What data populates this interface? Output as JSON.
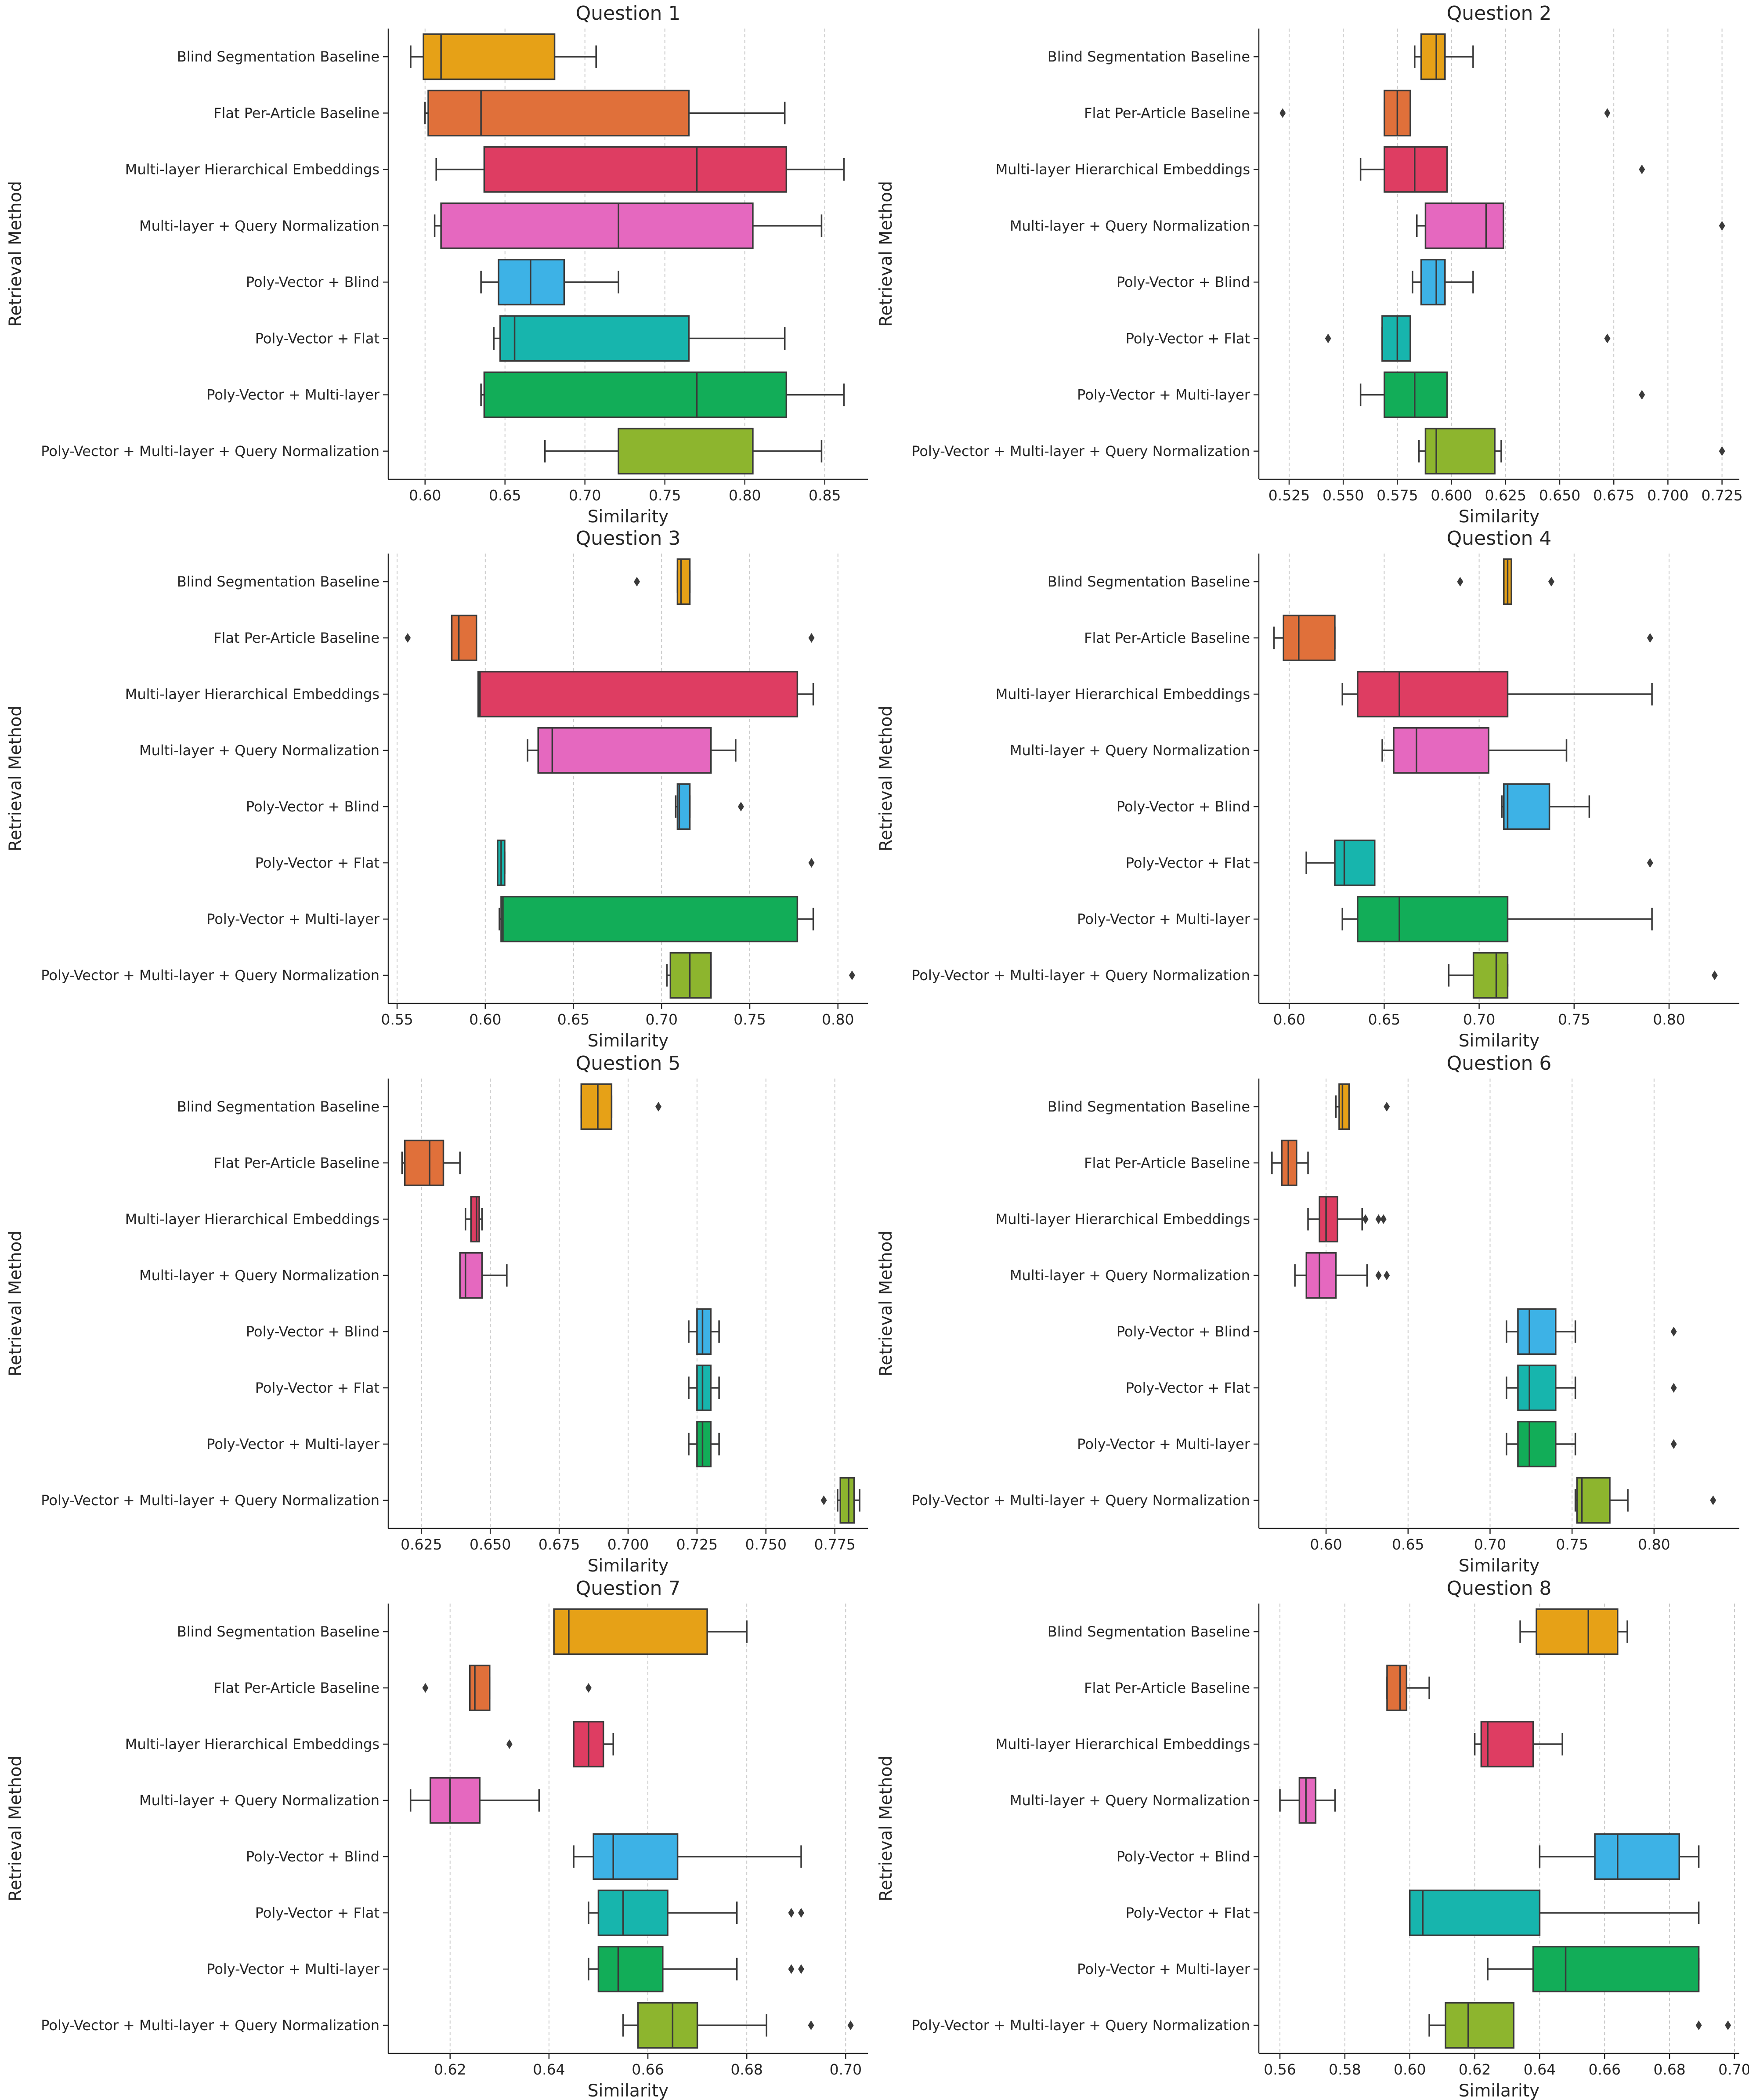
{
  "methods": [
    "Blind Segmentation Baseline",
    "Flat Per-Article Baseline",
    "Multi-layer Hierarchical Embeddings",
    "Multi-layer + Query Normalization",
    "Poly-Vector + Blind",
    "Poly-Vector + Flat",
    "Poly-Vector + Multi-layer",
    "Poly-Vector + Multi-layer + Query Normalization"
  ],
  "colors": [
    "#E6A117",
    "#E0703A",
    "#DE3D62",
    "#E568BF",
    "#3DB2E6",
    "#17B5AD",
    "#12AD58",
    "#8DB52E"
  ],
  "chart_data": [
    {
      "type": "box",
      "title": "Question 1",
      "xlabel": "Similarity",
      "ylabel": "Retrieval Method",
      "xlim": [
        0.577,
        0.877
      ],
      "xticks": [
        0.6,
        0.65,
        0.7,
        0.75,
        0.8,
        0.85
      ],
      "tick_labels": [
        "0.60",
        "0.65",
        "0.70",
        "0.75",
        "0.80",
        "0.85"
      ],
      "grid": "vertical",
      "boxes": [
        {
          "whislo": 0.591,
          "q1": 0.599,
          "med": 0.61,
          "q3": 0.681,
          "whishi": 0.707,
          "fliers": []
        },
        {
          "whislo": 0.6,
          "q1": 0.602,
          "med": 0.635,
          "q3": 0.765,
          "whishi": 0.825,
          "fliers": []
        },
        {
          "whislo": 0.607,
          "q1": 0.637,
          "med": 0.77,
          "q3": 0.826,
          "whishi": 0.862,
          "fliers": []
        },
        {
          "whislo": 0.606,
          "q1": 0.61,
          "med": 0.721,
          "q3": 0.805,
          "whishi": 0.848,
          "fliers": []
        },
        {
          "whislo": 0.635,
          "q1": 0.646,
          "med": 0.666,
          "q3": 0.687,
          "whishi": 0.721,
          "fliers": []
        },
        {
          "whislo": 0.643,
          "q1": 0.647,
          "med": 0.656,
          "q3": 0.765,
          "whishi": 0.825,
          "fliers": []
        },
        {
          "whislo": 0.635,
          "q1": 0.637,
          "med": 0.77,
          "q3": 0.826,
          "whishi": 0.862,
          "fliers": []
        },
        {
          "whislo": 0.675,
          "q1": 0.721,
          "med": 0.721,
          "q3": 0.805,
          "whishi": 0.848,
          "fliers": []
        }
      ]
    },
    {
      "type": "box",
      "title": "Question 2",
      "xlabel": "Similarity",
      "ylabel": "Retrieval Method",
      "xlim": [
        0.511,
        0.733
      ],
      "xticks": [
        0.525,
        0.55,
        0.575,
        0.6,
        0.625,
        0.65,
        0.675,
        0.7,
        0.725
      ],
      "tick_labels": [
        "0.525",
        "0.550",
        "0.575",
        "0.600",
        "0.625",
        "0.650",
        "0.675",
        "0.700",
        "0.725"
      ],
      "grid": "vertical",
      "boxes": [
        {
          "whislo": 0.583,
          "q1": 0.586,
          "med": 0.593,
          "q3": 0.597,
          "whishi": 0.61,
          "fliers": []
        },
        {
          "whislo": 0.569,
          "q1": 0.569,
          "med": 0.575,
          "q3": 0.581,
          "whishi": 0.581,
          "fliers": [
            0.522,
            0.672
          ]
        },
        {
          "whislo": 0.558,
          "q1": 0.569,
          "med": 0.583,
          "q3": 0.598,
          "whishi": 0.598,
          "fliers": [
            0.688
          ]
        },
        {
          "whislo": 0.584,
          "q1": 0.588,
          "med": 0.616,
          "q3": 0.624,
          "whishi": 0.624,
          "fliers": [
            0.725
          ]
        },
        {
          "whislo": 0.582,
          "q1": 0.586,
          "med": 0.593,
          "q3": 0.597,
          "whishi": 0.61,
          "fliers": []
        },
        {
          "whislo": 0.568,
          "q1": 0.568,
          "med": 0.575,
          "q3": 0.581,
          "whishi": 0.581,
          "fliers": [
            0.543,
            0.672
          ]
        },
        {
          "whislo": 0.558,
          "q1": 0.569,
          "med": 0.583,
          "q3": 0.598,
          "whishi": 0.598,
          "fliers": [
            0.688
          ]
        },
        {
          "whislo": 0.585,
          "q1": 0.588,
          "med": 0.593,
          "q3": 0.62,
          "whishi": 0.623,
          "fliers": [
            0.725
          ]
        }
      ]
    },
    {
      "type": "box",
      "title": "Question 3",
      "xlabel": "Similarity",
      "ylabel": "Retrieval Method",
      "xlim": [
        0.545,
        0.817
      ],
      "xticks": [
        0.55,
        0.6,
        0.65,
        0.7,
        0.75,
        0.8
      ],
      "tick_labels": [
        "0.55",
        "0.60",
        "0.65",
        "0.70",
        "0.75",
        "0.80"
      ],
      "grid": "vertical",
      "boxes": [
        {
          "whislo": 0.709,
          "q1": 0.709,
          "med": 0.711,
          "q3": 0.716,
          "whishi": 0.716,
          "fliers": [
            0.686
          ]
        },
        {
          "whislo": 0.581,
          "q1": 0.581,
          "med": 0.585,
          "q3": 0.595,
          "whishi": 0.595,
          "fliers": [
            0.556,
            0.785
          ]
        },
        {
          "whislo": 0.596,
          "q1": 0.596,
          "med": 0.597,
          "q3": 0.777,
          "whishi": 0.786,
          "fliers": []
        },
        {
          "whislo": 0.624,
          "q1": 0.63,
          "med": 0.638,
          "q3": 0.728,
          "whishi": 0.742,
          "fliers": []
        },
        {
          "whislo": 0.708,
          "q1": 0.709,
          "med": 0.71,
          "q3": 0.716,
          "whishi": 0.716,
          "fliers": [
            0.745
          ]
        },
        {
          "whislo": 0.607,
          "q1": 0.607,
          "med": 0.609,
          "q3": 0.611,
          "whishi": 0.611,
          "fliers": [
            0.785
          ]
        },
        {
          "whislo": 0.608,
          "q1": 0.609,
          "med": 0.61,
          "q3": 0.777,
          "whishi": 0.786,
          "fliers": []
        },
        {
          "whislo": 0.703,
          "q1": 0.705,
          "med": 0.716,
          "q3": 0.728,
          "whishi": 0.728,
          "fliers": [
            0.808
          ]
        }
      ]
    },
    {
      "type": "box",
      "title": "Question 4",
      "xlabel": "Similarity",
      "ylabel": "Retrieval Method",
      "xlim": [
        0.584,
        0.837
      ],
      "xticks": [
        0.6,
        0.65,
        0.7,
        0.75,
        0.8
      ],
      "tick_labels": [
        "0.60",
        "0.65",
        "0.70",
        "0.75",
        "0.80"
      ],
      "grid": "vertical",
      "boxes": [
        {
          "whislo": 0.713,
          "q1": 0.713,
          "med": 0.715,
          "q3": 0.717,
          "whishi": 0.717,
          "fliers": [
            0.69,
            0.738
          ]
        },
        {
          "whislo": 0.592,
          "q1": 0.597,
          "med": 0.605,
          "q3": 0.624,
          "whishi": 0.624,
          "fliers": [
            0.79
          ]
        },
        {
          "whislo": 0.628,
          "q1": 0.636,
          "med": 0.658,
          "q3": 0.715,
          "whishi": 0.791,
          "fliers": []
        },
        {
          "whislo": 0.649,
          "q1": 0.655,
          "med": 0.667,
          "q3": 0.705,
          "whishi": 0.746,
          "fliers": []
        },
        {
          "whislo": 0.712,
          "q1": 0.713,
          "med": 0.715,
          "q3": 0.737,
          "whishi": 0.758,
          "fliers": []
        },
        {
          "whislo": 0.609,
          "q1": 0.624,
          "med": 0.629,
          "q3": 0.645,
          "whishi": 0.645,
          "fliers": [
            0.79
          ]
        },
        {
          "whislo": 0.628,
          "q1": 0.636,
          "med": 0.658,
          "q3": 0.715,
          "whishi": 0.791,
          "fliers": []
        },
        {
          "whislo": 0.684,
          "q1": 0.697,
          "med": 0.709,
          "q3": 0.715,
          "whishi": 0.715,
          "fliers": [
            0.824
          ]
        }
      ]
    },
    {
      "type": "box",
      "title": "Question 5",
      "xlabel": "Similarity",
      "ylabel": "Retrieval Method",
      "xlim": [
        0.613,
        0.787
      ],
      "xticks": [
        0.625,
        0.65,
        0.675,
        0.7,
        0.725,
        0.75,
        0.775
      ],
      "tick_labels": [
        "0.625",
        "0.650",
        "0.675",
        "0.700",
        "0.725",
        "0.750",
        "0.775"
      ],
      "grid": "vertical",
      "boxes": [
        {
          "whislo": 0.683,
          "q1": 0.683,
          "med": 0.689,
          "q3": 0.694,
          "whishi": 0.694,
          "fliers": [
            0.711
          ]
        },
        {
          "whislo": 0.618,
          "q1": 0.619,
          "med": 0.628,
          "q3": 0.633,
          "whishi": 0.639,
          "fliers": []
        },
        {
          "whislo": 0.641,
          "q1": 0.643,
          "med": 0.645,
          "q3": 0.646,
          "whishi": 0.647,
          "fliers": []
        },
        {
          "whislo": 0.639,
          "q1": 0.639,
          "med": 0.641,
          "q3": 0.647,
          "whishi": 0.656,
          "fliers": []
        },
        {
          "whislo": 0.722,
          "q1": 0.725,
          "med": 0.727,
          "q3": 0.73,
          "whishi": 0.733,
          "fliers": []
        },
        {
          "whislo": 0.722,
          "q1": 0.725,
          "med": 0.727,
          "q3": 0.73,
          "whishi": 0.733,
          "fliers": []
        },
        {
          "whislo": 0.722,
          "q1": 0.725,
          "med": 0.727,
          "q3": 0.73,
          "whishi": 0.733,
          "fliers": []
        },
        {
          "whislo": 0.776,
          "q1": 0.777,
          "med": 0.78,
          "q3": 0.782,
          "whishi": 0.784,
          "fliers": [
            0.771
          ]
        }
      ]
    },
    {
      "type": "box",
      "title": "Question 6",
      "xlabel": "Similarity",
      "ylabel": "Retrieval Method",
      "xlim": [
        0.559,
        0.852
      ],
      "xticks": [
        0.6,
        0.65,
        0.7,
        0.75,
        0.8
      ],
      "tick_labels": [
        "0.60",
        "0.65",
        "0.70",
        "0.75",
        "0.80"
      ],
      "grid": "vertical",
      "boxes": [
        {
          "whislo": 0.606,
          "q1": 0.608,
          "med": 0.61,
          "q3": 0.614,
          "whishi": 0.614,
          "fliers": [
            0.637
          ]
        },
        {
          "whislo": 0.567,
          "q1": 0.573,
          "med": 0.577,
          "q3": 0.582,
          "whishi": 0.589,
          "fliers": []
        },
        {
          "whislo": 0.589,
          "q1": 0.596,
          "med": 0.6,
          "q3": 0.607,
          "whishi": 0.622,
          "fliers": [
            0.624,
            0.632,
            0.635
          ]
        },
        {
          "whislo": 0.581,
          "q1": 0.588,
          "med": 0.596,
          "q3": 0.606,
          "whishi": 0.625,
          "fliers": [
            0.632,
            0.637
          ]
        },
        {
          "whislo": 0.71,
          "q1": 0.717,
          "med": 0.724,
          "q3": 0.74,
          "whishi": 0.752,
          "fliers": [
            0.812
          ]
        },
        {
          "whislo": 0.71,
          "q1": 0.717,
          "med": 0.724,
          "q3": 0.74,
          "whishi": 0.752,
          "fliers": [
            0.812
          ]
        },
        {
          "whislo": 0.71,
          "q1": 0.717,
          "med": 0.724,
          "q3": 0.74,
          "whishi": 0.752,
          "fliers": [
            0.812
          ]
        },
        {
          "whislo": 0.752,
          "q1": 0.753,
          "med": 0.756,
          "q3": 0.773,
          "whishi": 0.784,
          "fliers": [
            0.836
          ]
        }
      ]
    },
    {
      "type": "box",
      "title": "Question 7",
      "xlabel": "Similarity",
      "ylabel": "Retrieval Method",
      "xlim": [
        0.6075,
        0.7045
      ],
      "xticks": [
        0.62,
        0.64,
        0.66,
        0.68,
        0.7
      ],
      "tick_labels": [
        "0.62",
        "0.64",
        "0.66",
        "0.68",
        "0.70"
      ],
      "grid": "vertical",
      "boxes": [
        {
          "whislo": 0.641,
          "q1": 0.641,
          "med": 0.644,
          "q3": 0.672,
          "whishi": 0.68,
          "fliers": []
        },
        {
          "whislo": 0.624,
          "q1": 0.624,
          "med": 0.625,
          "q3": 0.628,
          "whishi": 0.628,
          "fliers": [
            0.615,
            0.648
          ]
        },
        {
          "whislo": 0.645,
          "q1": 0.645,
          "med": 0.648,
          "q3": 0.651,
          "whishi": 0.653,
          "fliers": [
            0.632
          ]
        },
        {
          "whislo": 0.612,
          "q1": 0.616,
          "med": 0.62,
          "q3": 0.626,
          "whishi": 0.638,
          "fliers": []
        },
        {
          "whislo": 0.645,
          "q1": 0.649,
          "med": 0.653,
          "q3": 0.666,
          "whishi": 0.691,
          "fliers": []
        },
        {
          "whislo": 0.648,
          "q1": 0.65,
          "med": 0.655,
          "q3": 0.664,
          "whishi": 0.678,
          "fliers": [
            0.689,
            0.691
          ]
        },
        {
          "whislo": 0.648,
          "q1": 0.65,
          "med": 0.654,
          "q3": 0.663,
          "whishi": 0.678,
          "fliers": [
            0.689,
            0.691
          ]
        },
        {
          "whislo": 0.655,
          "q1": 0.658,
          "med": 0.665,
          "q3": 0.67,
          "whishi": 0.684,
          "fliers": [
            0.693,
            0.701
          ]
        }
      ]
    },
    {
      "type": "box",
      "title": "Question 8",
      "xlabel": "Similarity",
      "ylabel": "Retrieval Method",
      "xlim": [
        0.5535,
        0.7015
      ],
      "xticks": [
        0.56,
        0.58,
        0.6,
        0.62,
        0.64,
        0.66,
        0.68,
        0.7
      ],
      "tick_labels": [
        "0.56",
        "0.58",
        "0.60",
        "0.62",
        "0.64",
        "0.66",
        "0.68",
        "0.70"
      ],
      "grid": "vertical",
      "boxes": [
        {
          "whislo": 0.634,
          "q1": 0.639,
          "med": 0.655,
          "q3": 0.664,
          "whishi": 0.667,
          "fliers": []
        },
        {
          "whislo": 0.593,
          "q1": 0.593,
          "med": 0.597,
          "q3": 0.599,
          "whishi": 0.606,
          "fliers": []
        },
        {
          "whislo": 0.62,
          "q1": 0.622,
          "med": 0.624,
          "q3": 0.638,
          "whishi": 0.647,
          "fliers": []
        },
        {
          "whislo": 0.56,
          "q1": 0.566,
          "med": 0.568,
          "q3": 0.571,
          "whishi": 0.577,
          "fliers": []
        },
        {
          "whislo": 0.64,
          "q1": 0.657,
          "med": 0.664,
          "q3": 0.683,
          "whishi": 0.689,
          "fliers": []
        },
        {
          "whislo": 0.6,
          "q1": 0.6,
          "med": 0.604,
          "q3": 0.64,
          "whishi": 0.689,
          "fliers": []
        },
        {
          "whislo": 0.624,
          "q1": 0.638,
          "med": 0.648,
          "q3": 0.689,
          "whishi": 0.689,
          "fliers": []
        },
        {
          "whislo": 0.606,
          "q1": 0.611,
          "med": 0.618,
          "q3": 0.632,
          "whishi": 0.632,
          "fliers": [
            0.689,
            0.698
          ]
        }
      ]
    }
  ]
}
